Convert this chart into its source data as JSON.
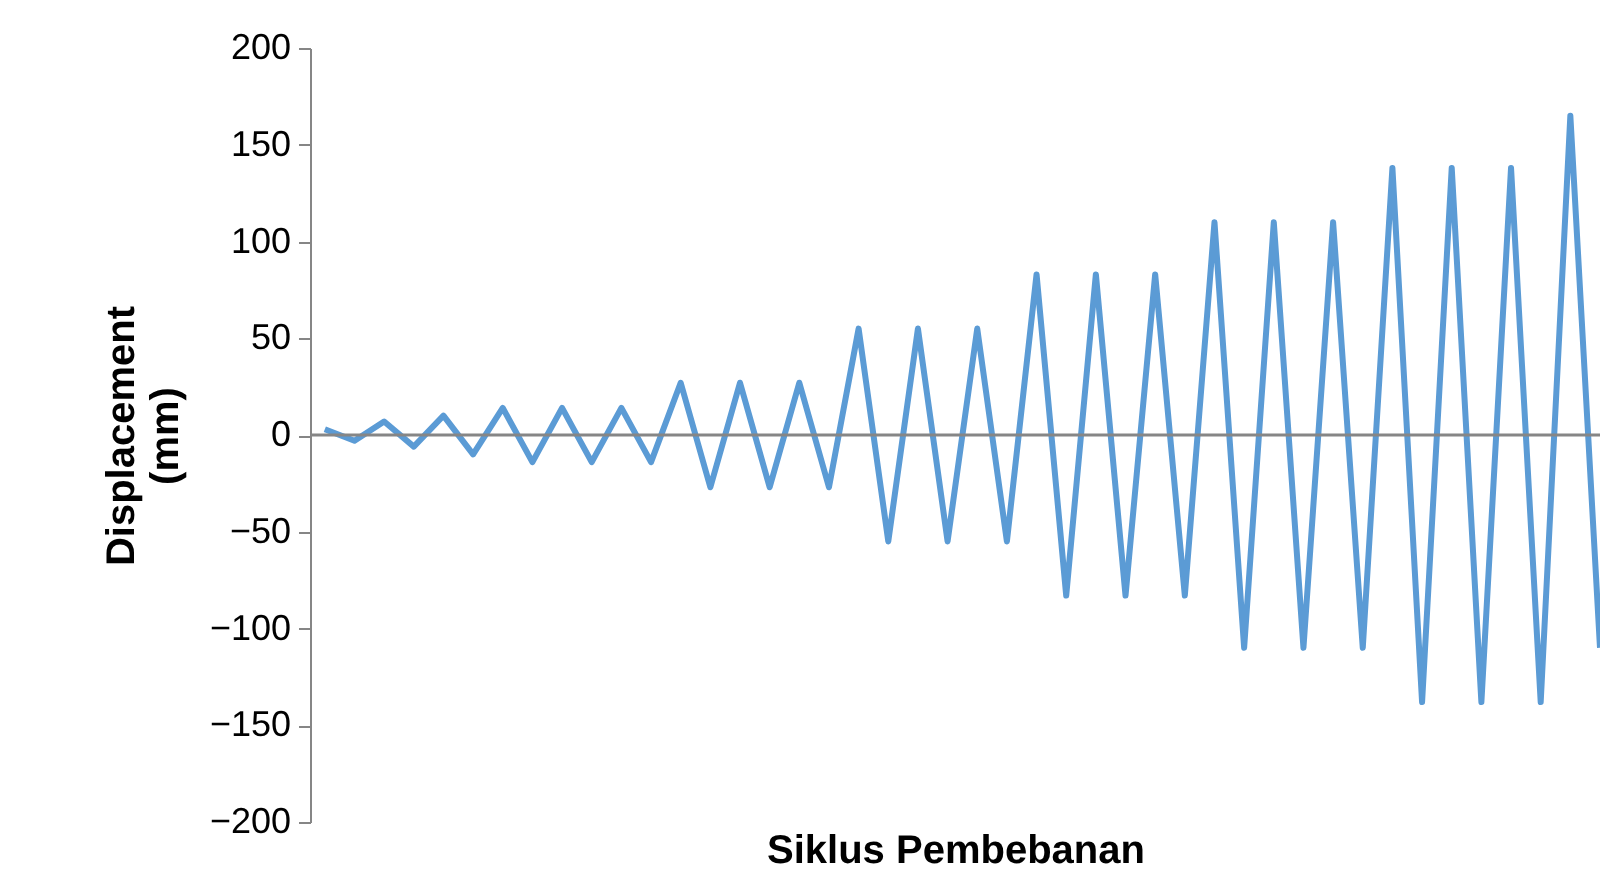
{
  "chart_data": {
    "type": "line",
    "xlabel": "Siklus Pembebanan",
    "ylabel": "Displacement (mm)",
    "categories": [
      null,
      null,
      null,
      null,
      null,
      null,
      null,
      null,
      null,
      null,
      null,
      null,
      null,
      null,
      null,
      null,
      null,
      null,
      null,
      null,
      null,
      null,
      null,
      null,
      null,
      null,
      null,
      null,
      null,
      null,
      null,
      null,
      null,
      null,
      null,
      null,
      null,
      null,
      null,
      null,
      null,
      null,
      null,
      null
    ],
    "series": [
      {
        "color": "#5b9bd5",
        "values": [
          3,
          -3,
          7,
          -6,
          10,
          -10,
          14,
          -14,
          14,
          -14,
          14,
          -14,
          27,
          -27,
          27,
          -27,
          27,
          -27,
          55,
          -55,
          55,
          -55,
          55,
          -55,
          83,
          -83,
          83,
          -83,
          83,
          -83,
          110,
          -110,
          110,
          -110,
          110,
          -110,
          138,
          -138,
          138,
          -138,
          138,
          -138,
          165,
          -110
        ]
      }
    ],
    "ylim": [
      -200,
      200
    ],
    "yticks": [
      -200,
      -150,
      -100,
      -50,
      0,
      50,
      100,
      150,
      200
    ],
    "ref_lines": [
      {
        "axis": "y",
        "value": 0,
        "color": "#868686"
      }
    ],
    "marker": "none",
    "line_style": "solid"
  }
}
